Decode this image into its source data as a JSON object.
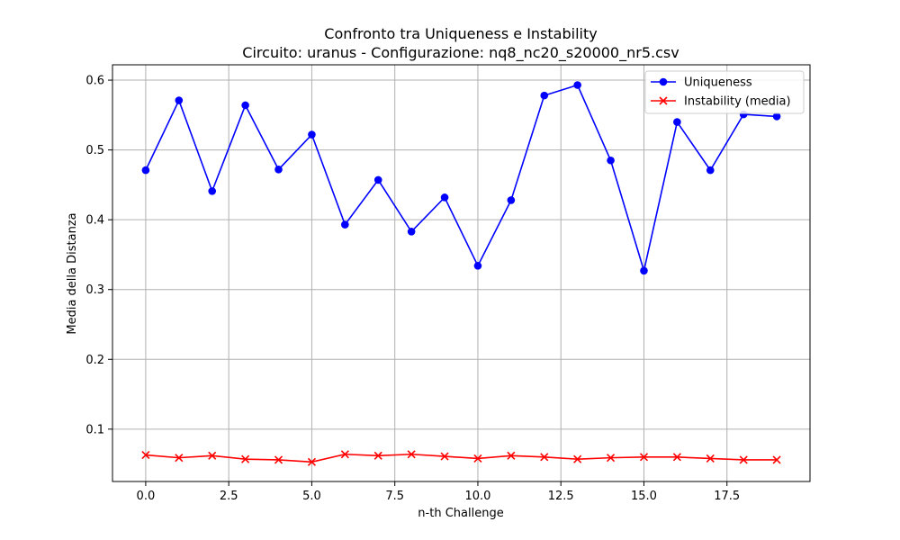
{
  "chart_data": {
    "type": "line",
    "title": "Confronto tra Uniqueness e Instability",
    "subtitle": "Circuito: uranus - Configurazione: nq8_nc20_s20000_nr5.csv",
    "xlabel": "n-th Challenge",
    "ylabel": "Media della Distanza",
    "xlim": [
      -1.0,
      20.0
    ],
    "ylim": [
      0.025,
      0.622
    ],
    "x_ticks": [
      0.0,
      2.5,
      5.0,
      7.5,
      10.0,
      12.5,
      15.0,
      17.5
    ],
    "x_tick_labels": [
      "0.0",
      "2.5",
      "5.0",
      "7.5",
      "10.0",
      "12.5",
      "15.0",
      "17.5"
    ],
    "y_ticks": [
      0.1,
      0.2,
      0.3,
      0.4,
      0.5,
      0.6
    ],
    "y_tick_labels": [
      "0.1",
      "0.2",
      "0.3",
      "0.4",
      "0.5",
      "0.6"
    ],
    "grid": true,
    "legend_position": "top-right",
    "x": [
      0,
      1,
      2,
      3,
      4,
      5,
      6,
      7,
      8,
      9,
      10,
      11,
      12,
      13,
      14,
      15,
      16,
      17,
      18,
      19
    ],
    "series": [
      {
        "name": "Uniqueness",
        "color": "#0000ff",
        "marker": "circle",
        "values": [
          0.471,
          0.571,
          0.441,
          0.564,
          0.472,
          0.522,
          0.393,
          0.457,
          0.383,
          0.432,
          0.334,
          0.428,
          0.578,
          0.593,
          0.485,
          0.327,
          0.54,
          0.471,
          0.551,
          0.548
        ]
      },
      {
        "name": "Instability (media)",
        "color": "#ff0000",
        "marker": "x",
        "values": [
          0.063,
          0.059,
          0.062,
          0.057,
          0.056,
          0.053,
          0.064,
          0.062,
          0.064,
          0.061,
          0.058,
          0.062,
          0.06,
          0.057,
          0.059,
          0.06,
          0.06,
          0.058,
          0.056,
          0.056
        ]
      }
    ]
  }
}
